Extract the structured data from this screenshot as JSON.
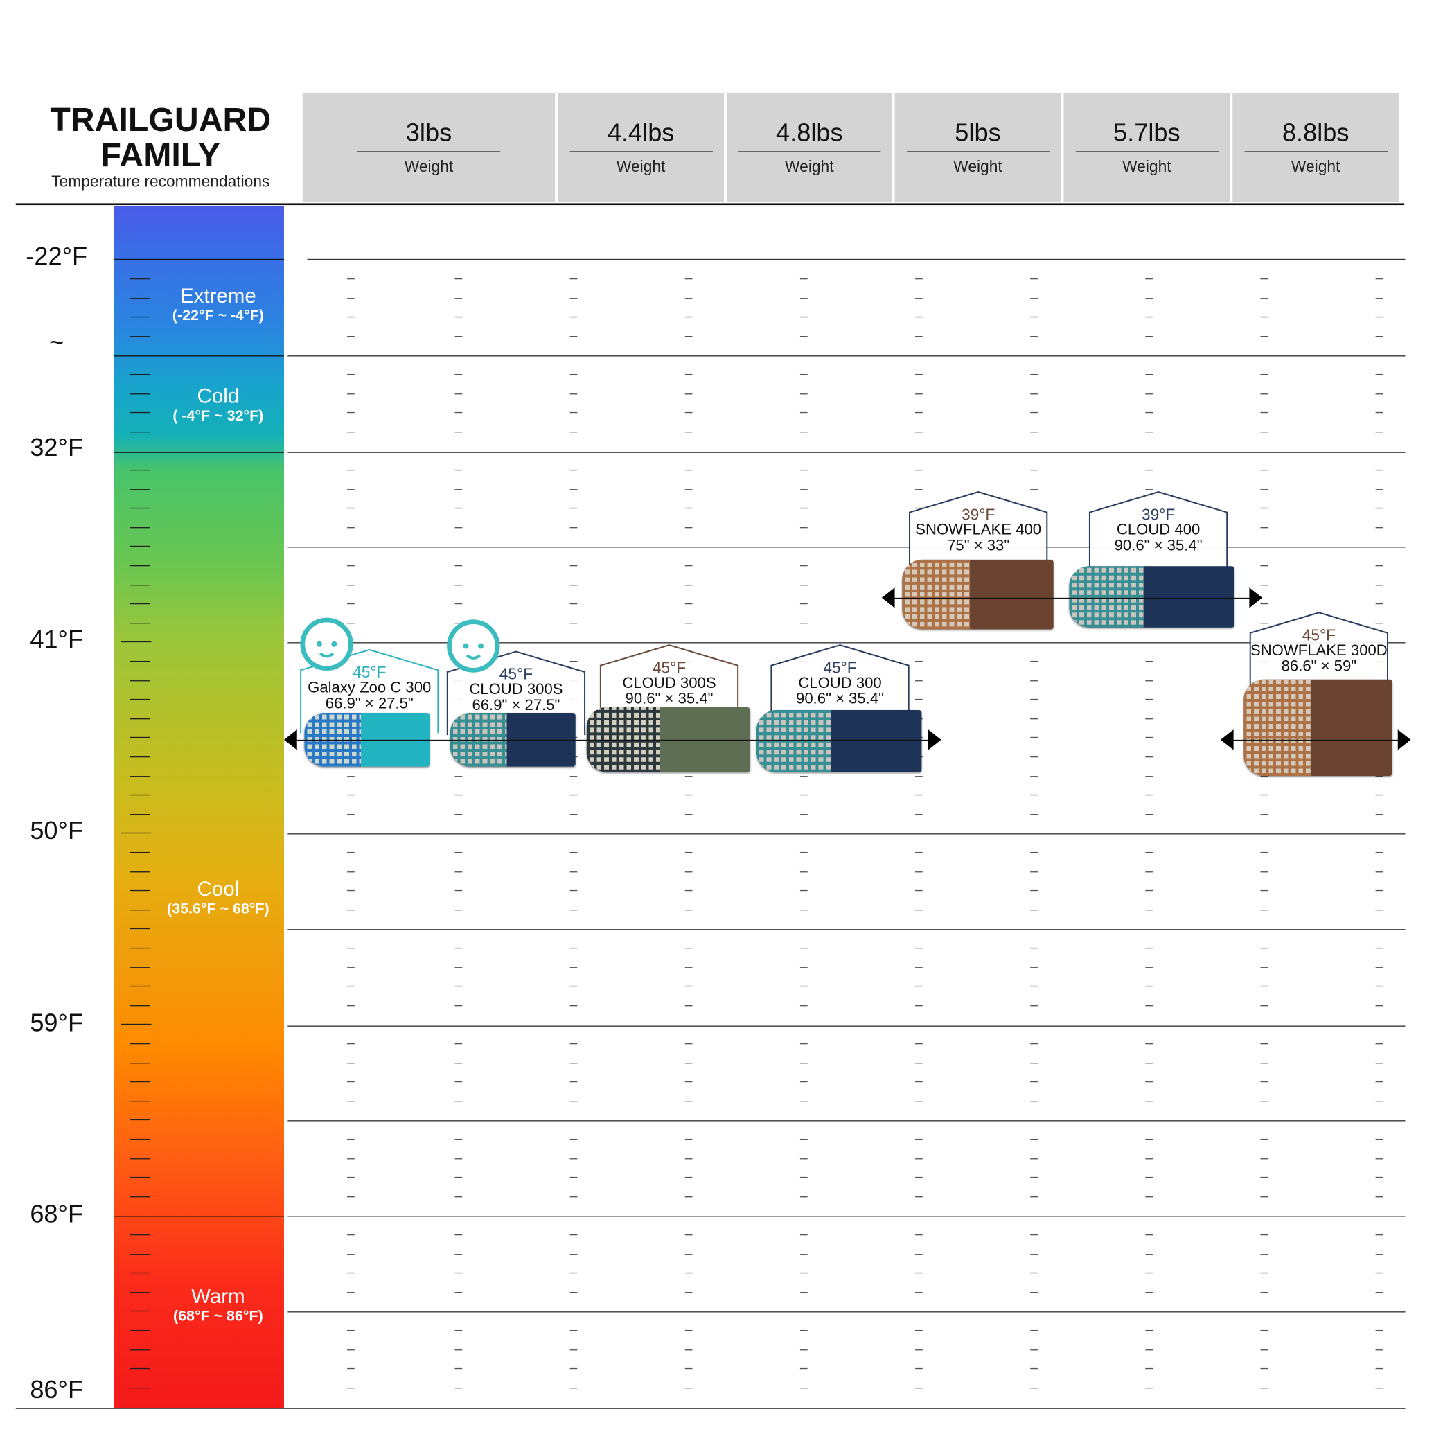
{
  "header": {
    "title_line1": "TRAILGUARD",
    "title_line2": "FAMILY",
    "subtitle": "Temperature recommendations"
  },
  "weights": [
    {
      "value": "3lbs",
      "label": "Weight"
    },
    {
      "value": "4.4lbs",
      "label": "Weight"
    },
    {
      "value": "4.8lbs",
      "label": "Weight"
    },
    {
      "value": "5lbs",
      "label": "Weight"
    },
    {
      "value": "5.7lbs",
      "label": "Weight"
    },
    {
      "value": "8.8lbs",
      "label": "Weight"
    }
  ],
  "axis_labels": [
    "-22°F",
    "~",
    "32°F",
    "41°F",
    "50°F",
    "59°F",
    "68°F",
    "86°F"
  ],
  "zones": [
    {
      "name": "Extreme",
      "range": "(-22°F ~ -4°F)"
    },
    {
      "name": "Cold",
      "range": "( -4°F ~ 32°F)"
    },
    {
      "name": "Cool",
      "range": "(35.6°F ~ 68°F)"
    },
    {
      "name": "Warm",
      "range": "(68°F ~ 86°F)"
    }
  ],
  "colors": {
    "teal": "#2ab3bc",
    "navy": "#2b3d5e",
    "brown": "#6b4a3a",
    "header_bg": "#d4d4d4"
  },
  "chart_data": {
    "type": "table",
    "title": "TRAILGUARD FAMILY",
    "subtitle": "Temperature recommendations",
    "products": [
      {
        "name": "Galaxy Zoo C 300",
        "temp": "45°F",
        "size": "66.9\" × 27.5\"",
        "kids": true,
        "outline": "teal",
        "bag": "teal"
      },
      {
        "name": "CLOUD 300S",
        "temp": "45°F",
        "size": "66.9\" × 27.5\"",
        "kids": true,
        "outline": "navy",
        "bag": "navy"
      },
      {
        "name": "CLOUD 300S",
        "temp": "45°F",
        "size": "90.6\" × 35.4\"",
        "kids": false,
        "outline": "brown",
        "bag": "green"
      },
      {
        "name": "CLOUD 300",
        "temp": "45°F",
        "size": "90.6\" × 35.4\"",
        "kids": false,
        "outline": "navy",
        "bag": "navy"
      },
      {
        "name": "SNOWFLAKE 400",
        "temp": "39°F",
        "size": "75\" × 33\"",
        "kids": false,
        "outline": "navy",
        "bag": "brown"
      },
      {
        "name": "CLOUD 400",
        "temp": "39°F",
        "size": "90.6\" × 35.4\"",
        "kids": false,
        "outline": "navy",
        "bag": "navy"
      },
      {
        "name": "SNOWFLAKE 300D",
        "temp": "45°F",
        "size": "86.6\" × 59\"",
        "kids": false,
        "outline": "navy",
        "bag": "brown"
      }
    ]
  }
}
